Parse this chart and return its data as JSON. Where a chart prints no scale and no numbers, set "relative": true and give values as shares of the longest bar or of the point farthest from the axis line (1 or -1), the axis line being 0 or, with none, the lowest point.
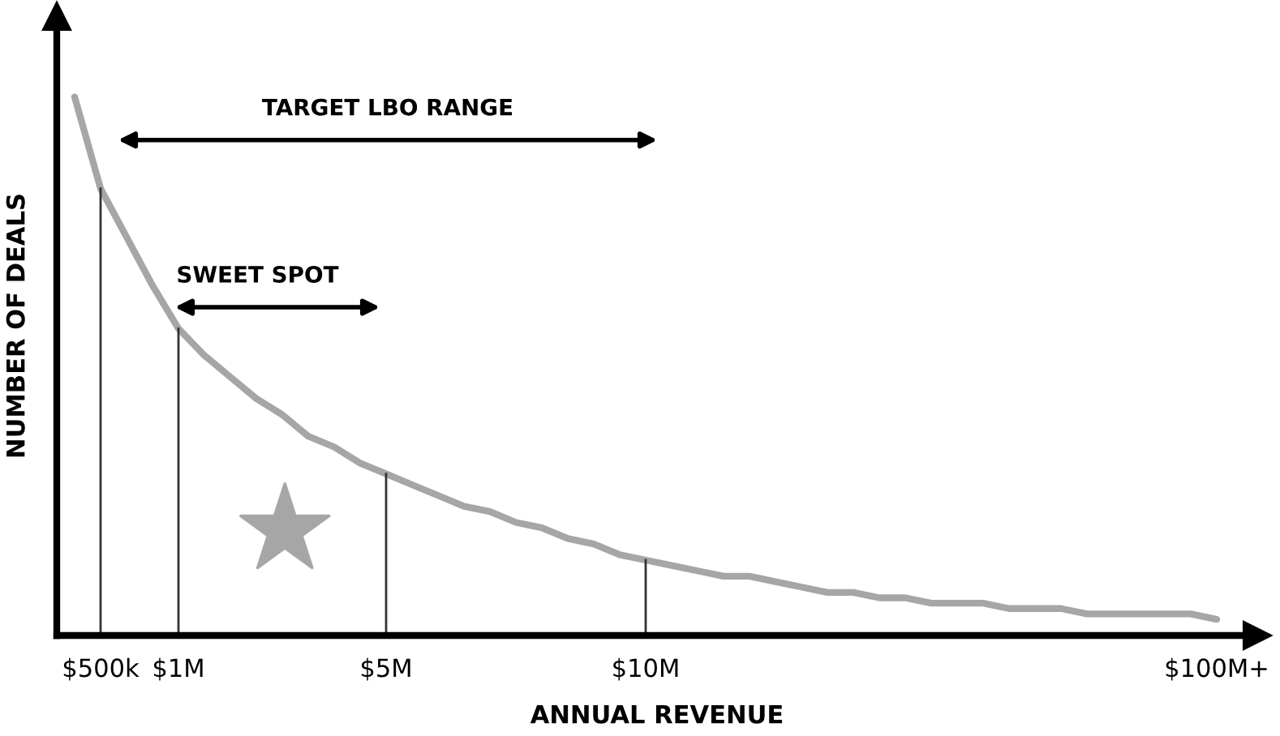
{
  "chart_data": {
    "type": "line",
    "relative": true,
    "xlabel": "ANNUAL REVENUE",
    "ylabel": "NUMBER OF DEALS",
    "categories": [
      null,
      "$500k",
      null,
      null,
      "$1M",
      null,
      null,
      null,
      null,
      null,
      null,
      null,
      "$5M",
      null,
      null,
      null,
      null,
      null,
      null,
      null,
      null,
      null,
      "$10M",
      null,
      null,
      null,
      null,
      null,
      null,
      null,
      null,
      null,
      null,
      null,
      null,
      null,
      null,
      null,
      null,
      null,
      null,
      null,
      null,
      null,
      "$100M+"
    ],
    "series": [
      {
        "color": "#a6a6a6",
        "values": [
          1,
          0.83,
          0.74,
          0.65,
          0.57,
          0.52,
          0.48,
          0.44,
          0.41,
          0.37,
          0.35,
          0.32,
          0.3,
          0.28,
          0.26,
          0.24,
          0.23,
          0.21,
          0.2,
          0.18,
          0.17,
          0.15,
          0.14,
          0.13,
          0.12,
          0.11,
          0.11,
          0.1,
          0.09,
          0.08,
          0.08,
          0.07,
          0.07,
          0.06,
          0.06,
          0.06,
          0.05,
          0.05,
          0.05,
          0.04,
          0.04,
          0.04,
          0.04,
          0.04,
          0.03
        ]
      }
    ],
    "ref_lines": [
      {
        "axis": "x",
        "value": "$500k",
        "color": "#333333"
      },
      {
        "axis": "x",
        "value": "$1M",
        "color": "#333333"
      },
      {
        "axis": "x",
        "value": "$5M",
        "color": "#333333"
      },
      {
        "axis": "x",
        "value": "$10M",
        "color": "#333333"
      }
    ],
    "annotations": [
      "TARGET LBO RANGE",
      "SWEET SPOT"
    ],
    "grid": false,
    "legend": false,
    "marker": "none",
    "line_style": "solid"
  }
}
